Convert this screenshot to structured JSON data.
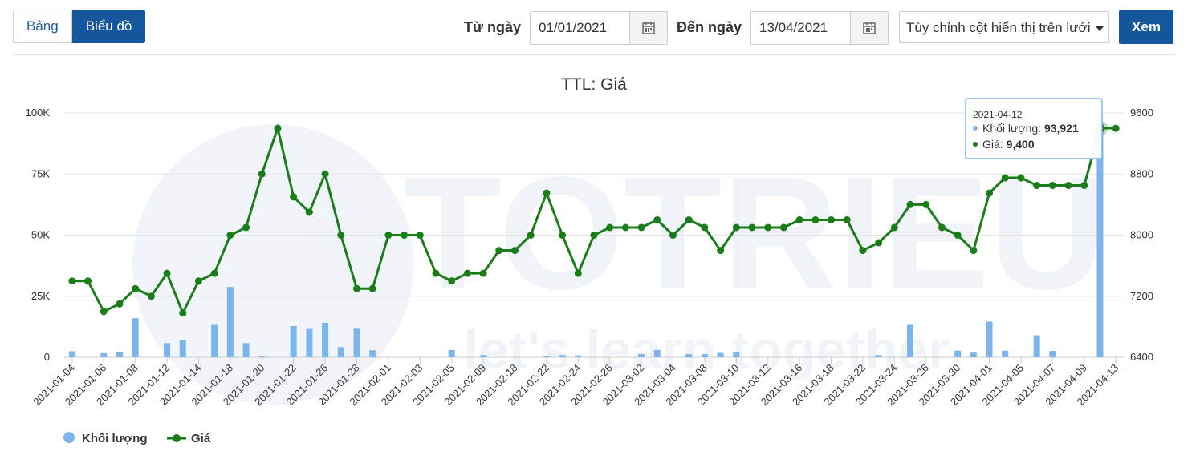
{
  "toolbar": {
    "tab_table": "Bảng",
    "tab_chart": "Biểu đồ",
    "from_label": "Từ ngày",
    "from_value": "01/01/2021",
    "to_label": "Đến ngày",
    "to_value": "13/04/2021",
    "columns_select": "Tùy chỉnh cột hiển thị trên lưới",
    "view_button": "Xem"
  },
  "icons": {
    "calendar": "calendar-icon",
    "dropdown": "caret-down-icon"
  },
  "colors": {
    "accent": "#14579c",
    "price": "#1a7d1a",
    "volume": "#7cb5ec"
  },
  "watermark": {
    "brand": "TOTRIEU",
    "slogan": "let's learn together"
  },
  "chart_data": {
    "type": "bar+line",
    "title": "TTL: Giá",
    "dates": [
      "2021-01-04",
      "2021-01-05",
      "2021-01-06",
      "2021-01-07",
      "2021-01-08",
      "2021-01-11",
      "2021-01-12",
      "2021-01-13",
      "2021-01-14",
      "2021-01-15",
      "2021-01-18",
      "2021-01-19",
      "2021-01-20",
      "2021-01-21",
      "2021-01-22",
      "2021-01-25",
      "2021-01-26",
      "2021-01-27",
      "2021-01-28",
      "2021-01-29",
      "2021-02-01",
      "2021-02-02",
      "2021-02-03",
      "2021-02-04",
      "2021-02-05",
      "2021-02-08",
      "2021-02-09",
      "2021-02-10",
      "2021-02-18",
      "2021-02-19",
      "2021-02-22",
      "2021-02-23",
      "2021-02-24",
      "2021-02-25",
      "2021-02-26",
      "2021-03-01",
      "2021-03-02",
      "2021-03-03",
      "2021-03-04",
      "2021-03-05",
      "2021-03-08",
      "2021-03-09",
      "2021-03-10",
      "2021-03-11",
      "2021-03-12",
      "2021-03-15",
      "2021-03-16",
      "2021-03-17",
      "2021-03-18",
      "2021-03-19",
      "2021-03-22",
      "2021-03-23",
      "2021-03-24",
      "2021-03-25",
      "2021-03-26",
      "2021-03-29",
      "2021-03-30",
      "2021-03-31",
      "2021-04-01",
      "2021-04-02",
      "2021-04-05",
      "2021-04-06",
      "2021-04-07",
      "2021-04-08",
      "2021-04-09",
      "2021-04-12",
      "2021-04-13"
    ],
    "x_tick_labels": [
      "2021-01-04",
      "2021-01-06",
      "2021-01-08",
      "2021-01-12",
      "2021-01-14",
      "2021-01-18",
      "2021-01-20",
      "2021-01-22",
      "2021-01-26",
      "2021-01-28",
      "2021-02-01",
      "2021-02-03",
      "2021-02-05",
      "2021-02-09",
      "2021-02-18",
      "2021-02-22",
      "2021-02-24",
      "2021-02-26",
      "2021-03-02",
      "2021-03-04",
      "2021-03-08",
      "2021-03-10",
      "2021-03-12",
      "2021-03-16",
      "2021-03-18",
      "2021-03-22",
      "2021-03-24",
      "2021-03-26",
      "2021-03-30",
      "2021-04-01",
      "2021-04-05",
      "2021-04-07",
      "2021-04-09",
      "2021-04-13"
    ],
    "series": [
      {
        "name": "Khối lượng",
        "type": "bar",
        "axis": "left",
        "values": [
          2500,
          0,
          1700,
          2200,
          16000,
          0,
          5800,
          7000,
          0,
          13300,
          28800,
          5800,
          500,
          0,
          12800,
          11600,
          14100,
          4200,
          11700,
          2900,
          0,
          0,
          0,
          0,
          3000,
          0,
          900,
          0,
          0,
          0,
          500,
          900,
          800,
          0,
          0,
          0,
          1300,
          3000,
          0,
          1300,
          1300,
          1800,
          2200,
          0,
          0,
          0,
          0,
          0,
          0,
          0,
          0,
          900,
          0,
          13300,
          0,
          0,
          2700,
          1900,
          14600,
          2700,
          0,
          9000,
          2600,
          0,
          0,
          93921,
          0
        ]
      },
      {
        "name": "Giá",
        "type": "line",
        "axis": "right",
        "values": [
          7400,
          7400,
          7000,
          7100,
          7300,
          7200,
          7500,
          6980,
          7400,
          7500,
          8000,
          8100,
          8800,
          9400,
          8500,
          8300,
          8800,
          8000,
          7300,
          7300,
          8000,
          8000,
          8000,
          7500,
          7400,
          7500,
          7500,
          7800,
          7800,
          8000,
          8550,
          8000,
          7500,
          8000,
          8100,
          8100,
          8100,
          8200,
          8000,
          8200,
          8100,
          7800,
          8100,
          8100,
          8100,
          8100,
          8200,
          8200,
          8200,
          8200,
          7800,
          7900,
          8100,
          8400,
          8400,
          8100,
          8000,
          7800,
          8550,
          8750,
          8750,
          8650,
          8650,
          8650,
          8650,
          9400,
          9400
        ]
      }
    ],
    "y_left": {
      "ticks": [
        0,
        25000,
        50000,
        75000,
        100000
      ],
      "tick_labels": [
        "0",
        "25K",
        "50K",
        "75K",
        "100K"
      ],
      "range": [
        0,
        100000
      ]
    },
    "y_right": {
      "ticks": [
        6400,
        7200,
        8000,
        8800,
        9600
      ],
      "tick_labels": [
        "6400",
        "7200",
        "8000",
        "8800",
        "9600"
      ],
      "range": [
        6400,
        9600
      ]
    },
    "grid": true,
    "legend_position": "bottom-left",
    "tooltip": {
      "date": "2021-04-12",
      "volume_label": "Khối lượng: ",
      "volume_value": "93,921",
      "price_label": "Giá: ",
      "price_value": "9,400"
    }
  }
}
